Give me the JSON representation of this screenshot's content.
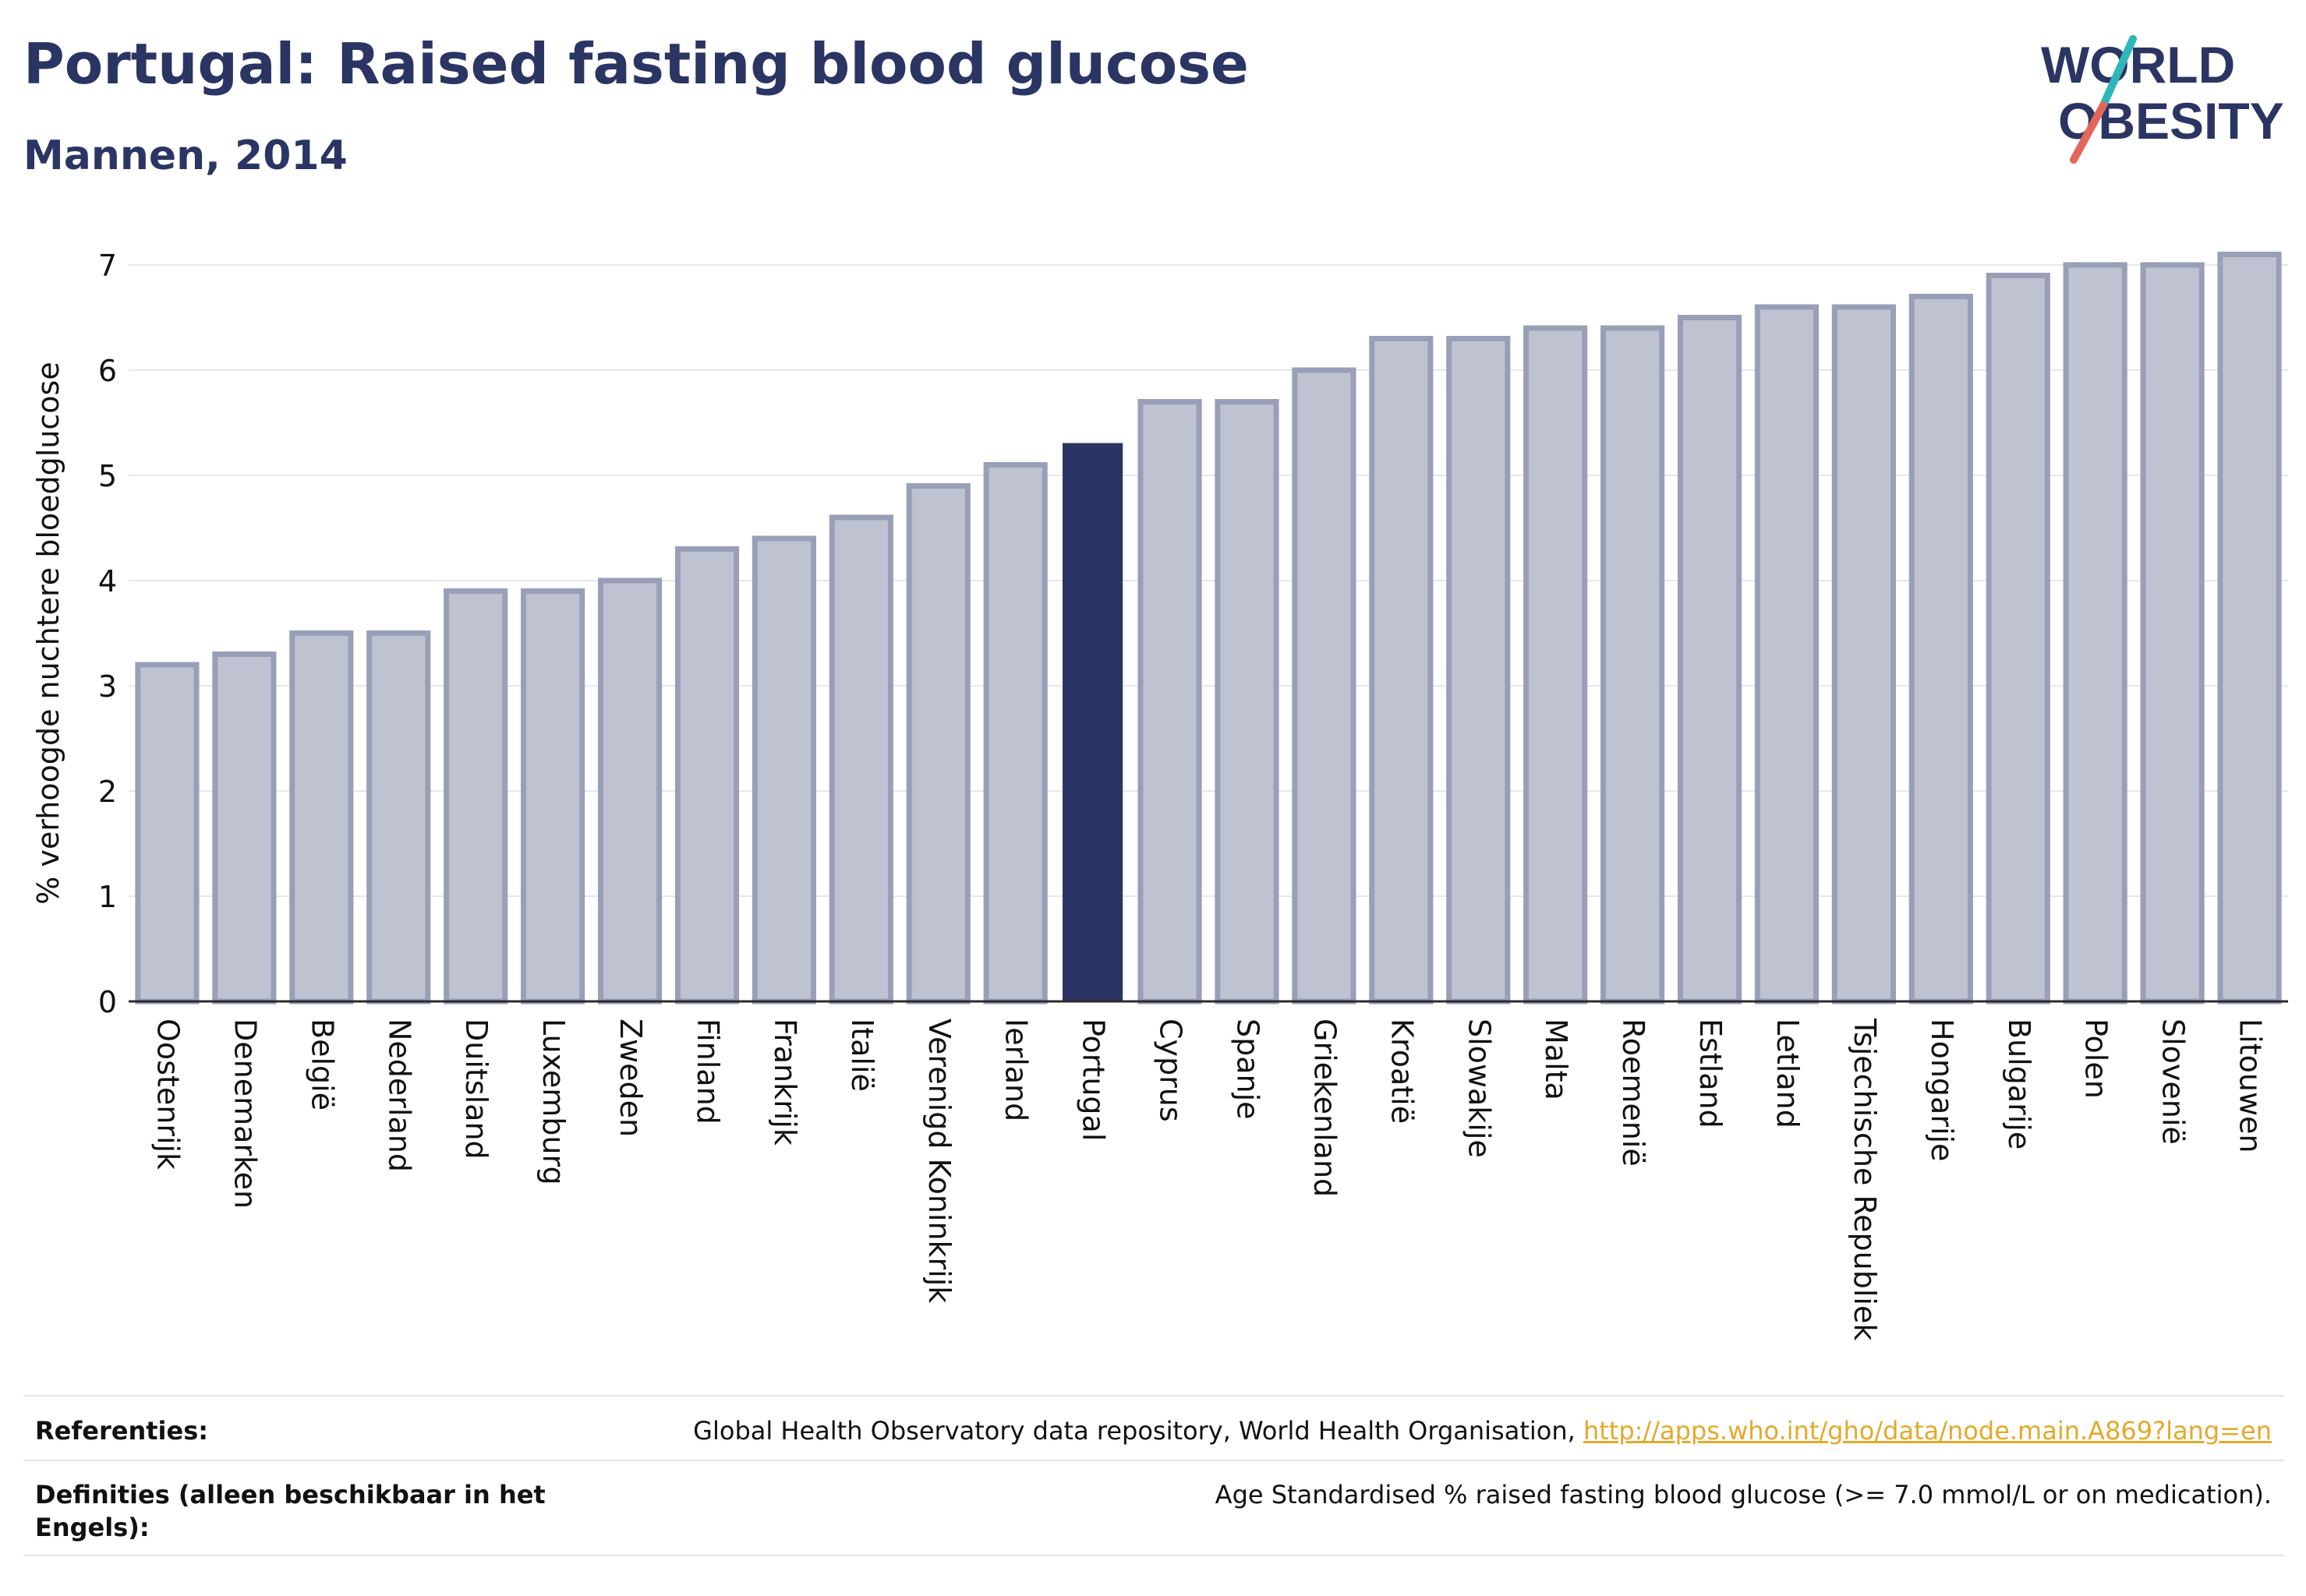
{
  "header": {
    "title": "Portugal: Raised fasting blood glucose",
    "subtitle": "Mannen, 2014"
  },
  "logo": {
    "line1": "WORLD",
    "line2": "OBESITY",
    "text_color": "#2b3563",
    "slash_top_color": "#2fb6b8",
    "slash_bottom_color": "#e2675a"
  },
  "chart_data": {
    "type": "bar",
    "title": "",
    "xlabel": "",
    "ylabel": "% verhoogde nuchtere bloedglucose",
    "ylim": [
      0,
      7.3
    ],
    "yticks": [
      0,
      1,
      2,
      3,
      4,
      5,
      6,
      7
    ],
    "grid": true,
    "highlight_category": "Portugal",
    "bar_color": "#bfc2d0",
    "bar_edge_color": "#9a9fb8",
    "highlight_color": "#2b3563",
    "categories": [
      "Oostenrijk",
      "Denemarken",
      "België",
      "Nederland",
      "Duitsland",
      "Luxemburg",
      "Zweden",
      "Finland",
      "Frankrijk",
      "Italië",
      "Verenigd Koninkrijk",
      "Ierland",
      "Portugal",
      "Cyprus",
      "Spanje",
      "Griekenland",
      "Kroatië",
      "Slowakije",
      "Malta",
      "Roemenië",
      "Estland",
      "Letland",
      "Tsjechische Republiek",
      "Hongarije",
      "Bulgarije",
      "Polen",
      "Slovenië",
      "Litouwen"
    ],
    "values": [
      3.2,
      3.3,
      3.5,
      3.5,
      3.9,
      3.9,
      4.0,
      4.3,
      4.4,
      4.6,
      4.9,
      5.1,
      5.3,
      5.7,
      5.7,
      6.0,
      6.3,
      6.3,
      6.4,
      6.4,
      6.5,
      6.6,
      6.6,
      6.7,
      6.9,
      7.0,
      7.0,
      7.1
    ]
  },
  "footer": {
    "references_label": "Referenties:",
    "references_text": "Global Health Observatory data repository, World Health Organisation, ",
    "references_link": "http://apps.who.int/gho/data/node.main.A869?lang=en",
    "definitions_label_line1": "Definities (alleen beschikbaar in het",
    "definitions_label_line2": "Engels):",
    "definitions_text": "Age Standardised % raised fasting blood glucose (>= 7.0 mmol/L or on medication)."
  }
}
